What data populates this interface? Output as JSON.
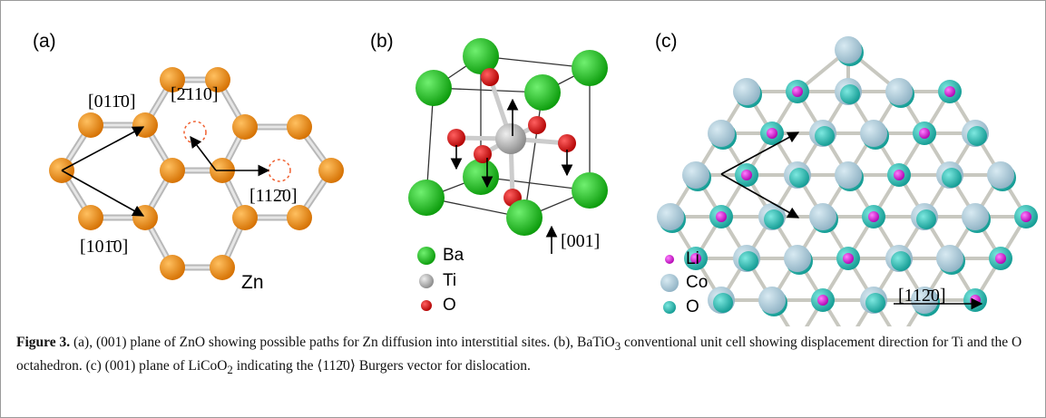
{
  "panels": [
    {
      "label": "(a)",
      "annotations": [
        "[011̄0]",
        "[2̄110]",
        "[112̄0]",
        "[101̄0]",
        "Zn"
      ]
    },
    {
      "label": "(b)",
      "legend": [
        "Ba",
        "Ti",
        "O"
      ],
      "annotations": [
        "[001]"
      ]
    },
    {
      "label": "(c)",
      "legend": [
        "Li",
        "Co",
        "O"
      ],
      "annotations": [
        "[112̄0]"
      ]
    }
  ],
  "caption": {
    "label": "Figure 3.",
    "segments": [
      " (a), (001) plane of ZnO showing possible paths for Zn diffusion into interstitial sites. (b), BaTiO",
      "3",
      " conventional unit cell showing displacement direction for Ti and the O octahedron. (c) (001) plane of LiCoO",
      "2",
      " indicating the ⟨112̄0⟩ Burgers vector for dislocation."
    ]
  }
}
